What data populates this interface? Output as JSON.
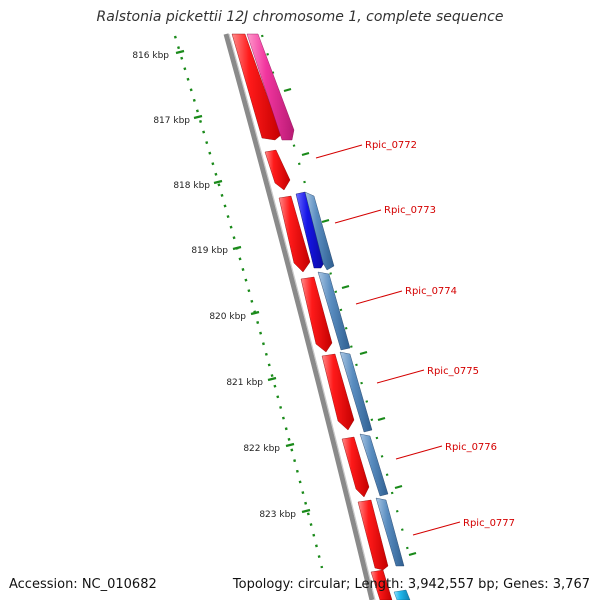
{
  "title": "Ralstonia pickettii 12J chromosome 1, complete sequence",
  "footer": {
    "accession": "Accession: NC_010682",
    "summary": "Topology: circular; Length: 3,942,557 bp; Genes: 3,767"
  },
  "ticks": [
    "816 kbp",
    "817 kbp",
    "818 kbp",
    "819 kbp",
    "820 kbp",
    "821 kbp",
    "822 kbp",
    "823 kbp"
  ],
  "genes": [
    "Rpic_0772",
    "Rpic_0773",
    "Rpic_0774",
    "Rpic_0775",
    "Rpic_0776",
    "Rpic_0777"
  ],
  "colors": {
    "backbone": "#8a8a8a",
    "cds": "#e8131b",
    "cds_blue": "#4f83b8",
    "cds_dark_blue": "#1515e6",
    "cds_pink": "#ef2f9a",
    "cds_cyan": "#1fb6ea",
    "tick": "#1a8a1a",
    "label": "#d40000"
  }
}
